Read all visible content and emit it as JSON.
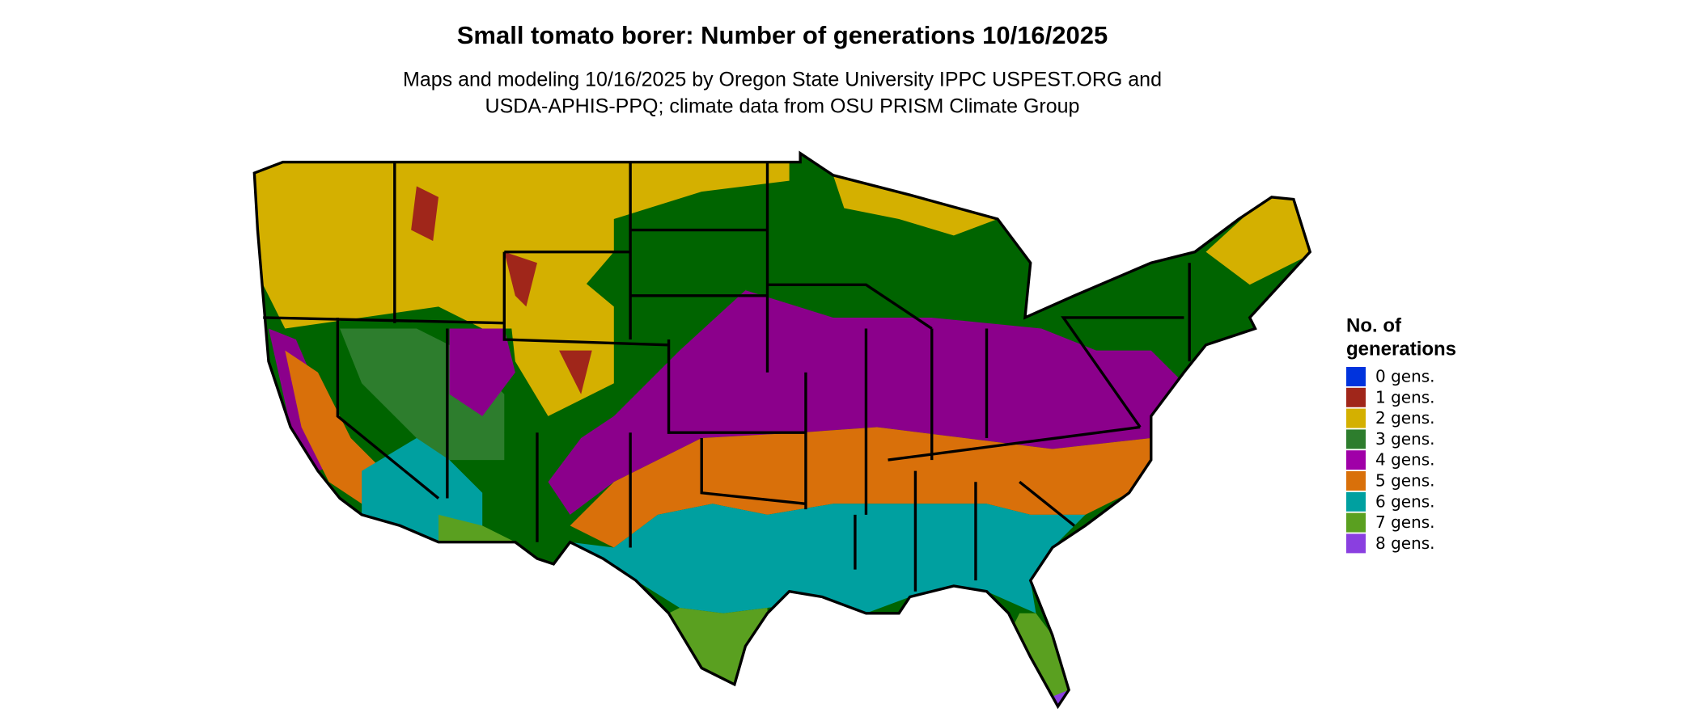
{
  "title": "Small tomato borer: Number of generations 10/16/2025",
  "subtitle": [
    "Maps and modeling 10/16/2025 by Oregon State University IPPC USPEST.ORG and",
    "USDA-APHIS-PPQ; climate data from OSU PRISM Climate Group"
  ],
  "legend": {
    "title": [
      "No. of",
      "generations"
    ],
    "items": [
      {
        "label": "0 gens.",
        "color": "#0033dd"
      },
      {
        "label": "1 gens.",
        "color": "#a0261a"
      },
      {
        "label": "2 gens.",
        "color": "#d4b000"
      },
      {
        "label": "3 gens.",
        "color": "#2d7d2d"
      },
      {
        "label": "4 gens.",
        "color": "#a000a8"
      },
      {
        "label": "5 gens.",
        "color": "#d9700a"
      },
      {
        "label": "6 gens.",
        "color": "#00a0a0"
      },
      {
        "label": "7 gens.",
        "color": "#5aa020"
      },
      {
        "label": "8 gens.",
        "color": "#8a3fe0"
      }
    ]
  }
}
